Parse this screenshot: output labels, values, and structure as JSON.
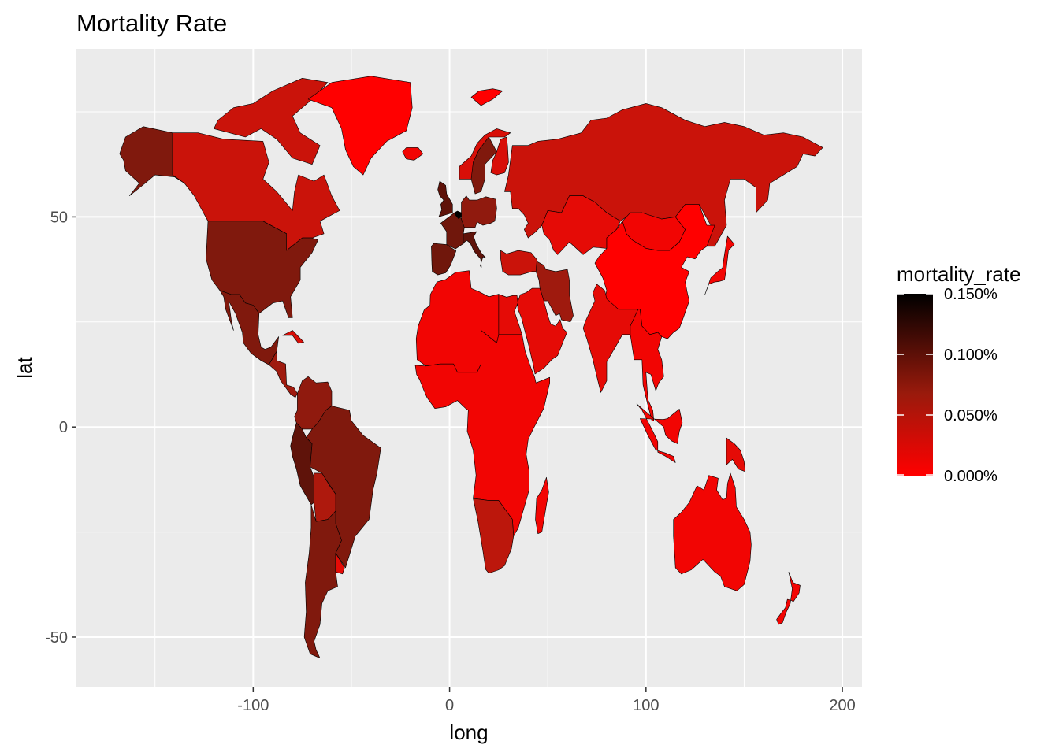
{
  "chart_data": {
    "type": "choropleth-map",
    "title": "Mortality Rate",
    "xlabel": "long",
    "ylabel": "lat",
    "xlim": [
      -190,
      210
    ],
    "ylim": [
      -62,
      90
    ],
    "x_ticks": [
      {
        "value": -100,
        "label": "-100"
      },
      {
        "value": 0,
        "label": "0"
      },
      {
        "value": 100,
        "label": "100"
      },
      {
        "value": 200,
        "label": "200"
      }
    ],
    "y_ticks": [
      {
        "value": -50,
        "label": "-50"
      },
      {
        "value": 0,
        "label": "0"
      },
      {
        "value": 50,
        "label": "50"
      }
    ],
    "minor_x": [
      -150,
      -50,
      50,
      150
    ],
    "minor_y": [
      -25,
      25,
      75
    ],
    "panel_background": "#EBEBEB",
    "grid": true,
    "legend": {
      "title": "mortality_rate",
      "position": "right",
      "low_color": "#FF0000",
      "high_color": "#000000",
      "range": [
        0,
        0.0015
      ],
      "breaks": [
        {
          "value": 0.0015,
          "label": "0.150%"
        },
        {
          "value": 0.001,
          "label": "0.100%"
        },
        {
          "value": 0.0005,
          "label": "0.050%"
        },
        {
          "value": 0,
          "label": "0.000%"
        }
      ]
    },
    "regions": [
      {
        "name": "Alaska",
        "value": 0.0009
      },
      {
        "name": "Canada",
        "value": 0.0004
      },
      {
        "name": "Canadian Arctic",
        "value": 0.0004
      },
      {
        "name": "Greenland",
        "value": 0.0
      },
      {
        "name": "United States",
        "value": 0.0009
      },
      {
        "name": "Mexico",
        "value": 0.0009
      },
      {
        "name": "Central America",
        "value": 0.0007
      },
      {
        "name": "Cuba",
        "value": 0.0003
      },
      {
        "name": "Venezuela / Colombia",
        "value": 0.0008
      },
      {
        "name": "Peru",
        "value": 0.0011
      },
      {
        "name": "Brazil",
        "value": 0.0009
      },
      {
        "name": "Bolivia",
        "value": 0.0006
      },
      {
        "name": "Argentina / Chile",
        "value": 0.0009
      },
      {
        "name": "Uruguay",
        "value": 0.0002
      },
      {
        "name": "Iceland",
        "value": 0.0001
      },
      {
        "name": "United Kingdom",
        "value": 0.0011
      },
      {
        "name": "Norway",
        "value": 0.0003
      },
      {
        "name": "Sweden",
        "value": 0.0009
      },
      {
        "name": "Finland",
        "value": 0.0003
      },
      {
        "name": "France",
        "value": 0.001
      },
      {
        "name": "Spain / Portugal",
        "value": 0.001
      },
      {
        "name": "Italy",
        "value": 0.0011
      },
      {
        "name": "Central Europe",
        "value": 0.0008
      },
      {
        "name": "Belgium",
        "value": 0.0015
      },
      {
        "name": "Russia",
        "value": 0.0004
      },
      {
        "name": "Kazakhstan",
        "value": 0.0002
      },
      {
        "name": "Mongolia",
        "value": 0.0001
      },
      {
        "name": "China",
        "value": 0.0
      },
      {
        "name": "India",
        "value": 0.0002
      },
      {
        "name": "Southeast Asia",
        "value": 0.0001
      },
      {
        "name": "Iran",
        "value": 0.0007
      },
      {
        "name": "Turkey",
        "value": 0.0004
      },
      {
        "name": "Arabian Peninsula",
        "value": 0.0002
      },
      {
        "name": "North Africa",
        "value": 0.0001
      },
      {
        "name": "Egypt",
        "value": 0.0002
      },
      {
        "name": "Central Africa",
        "value": 0.0001
      },
      {
        "name": "South Africa",
        "value": 0.0005
      },
      {
        "name": "Madagascar",
        "value": 0.0001
      },
      {
        "name": "Japan",
        "value": 0.0001
      },
      {
        "name": "Indonesia",
        "value": 0.0001
      },
      {
        "name": "Papua New Guinea",
        "value": 0.0002
      },
      {
        "name": "Australia",
        "value": 0.0001
      },
      {
        "name": "New Zealand",
        "value": 0.0001
      },
      {
        "name": "Svalbard",
        "value": 0.0
      }
    ]
  }
}
